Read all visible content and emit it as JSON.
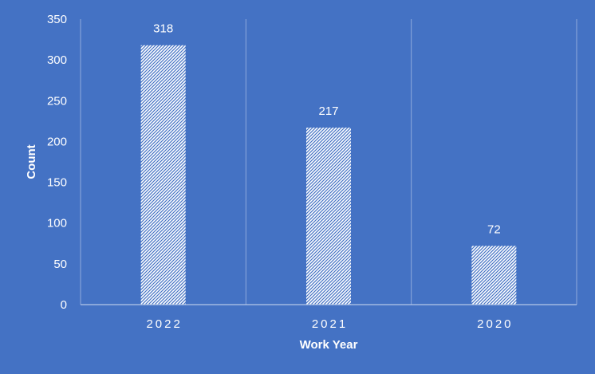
{
  "chart_data": {
    "type": "bar",
    "title": "",
    "xlabel": "Work Year",
    "ylabel": "Count",
    "categories": [
      "2022",
      "2021",
      "2020"
    ],
    "values": [
      318,
      217,
      72
    ],
    "ylim": [
      0,
      350
    ],
    "yticks": [
      0,
      50,
      100,
      150,
      200,
      250,
      300,
      350
    ],
    "grid": "vertical-category-separators",
    "legend": "none",
    "bar_fill": "diagonal-hatch"
  },
  "colors": {
    "background": "#4472C4",
    "gridline": "#8FAADC",
    "axis_line": "#B4C7E7",
    "text": "#FFFFFF",
    "bar_hatch": "#FFFFFF"
  }
}
